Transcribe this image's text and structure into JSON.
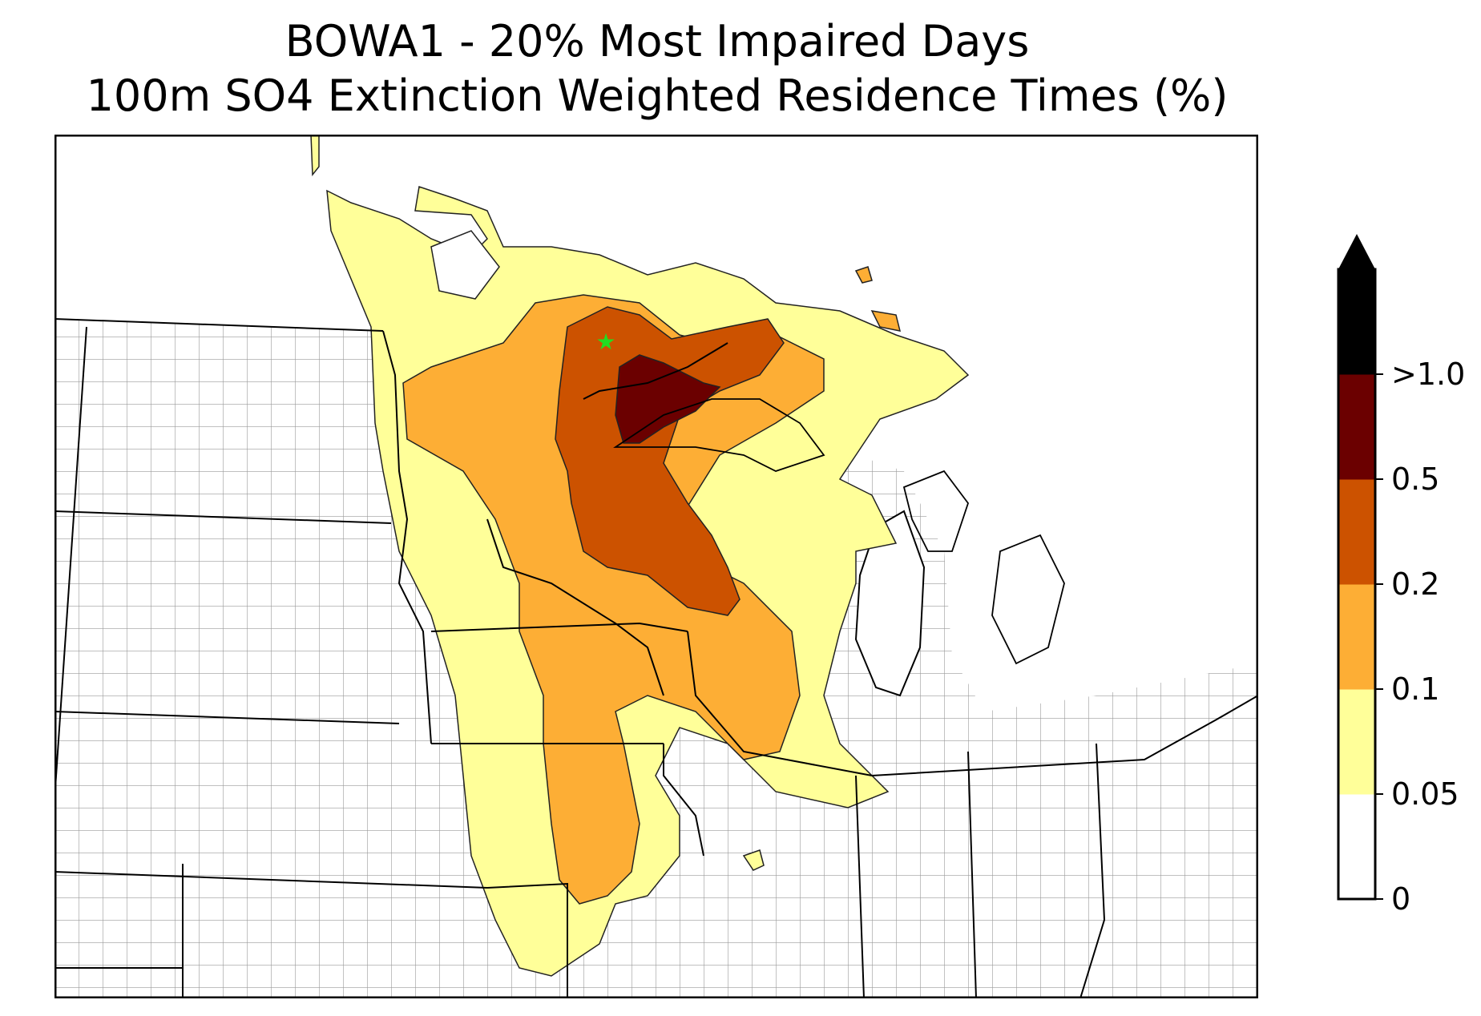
{
  "title": {
    "line1": "BOWA1 - 20% Most Impaired Days",
    "line2": "100m SO4 Extinction Weighted Residence Times (%)"
  },
  "site_marker": {
    "icon": "green-star-icon",
    "color": "#22dd22"
  },
  "legend": {
    "levels": [
      {
        "label": "0",
        "color": "#ffffff"
      },
      {
        "label": "0.05",
        "color": "#ffff99"
      },
      {
        "label": "0.1",
        "color": "#fdae35"
      },
      {
        "label": "0.2",
        "color": "#cc5200"
      },
      {
        "label": "0.5",
        "color": "#6b0000"
      },
      {
        "label": ">1.0",
        "color": "#000000"
      }
    ],
    "extend": "max"
  },
  "colors": {
    "state_lines": "#000000",
    "county_lines": "#999999",
    "contour_outline": "#222222"
  }
}
